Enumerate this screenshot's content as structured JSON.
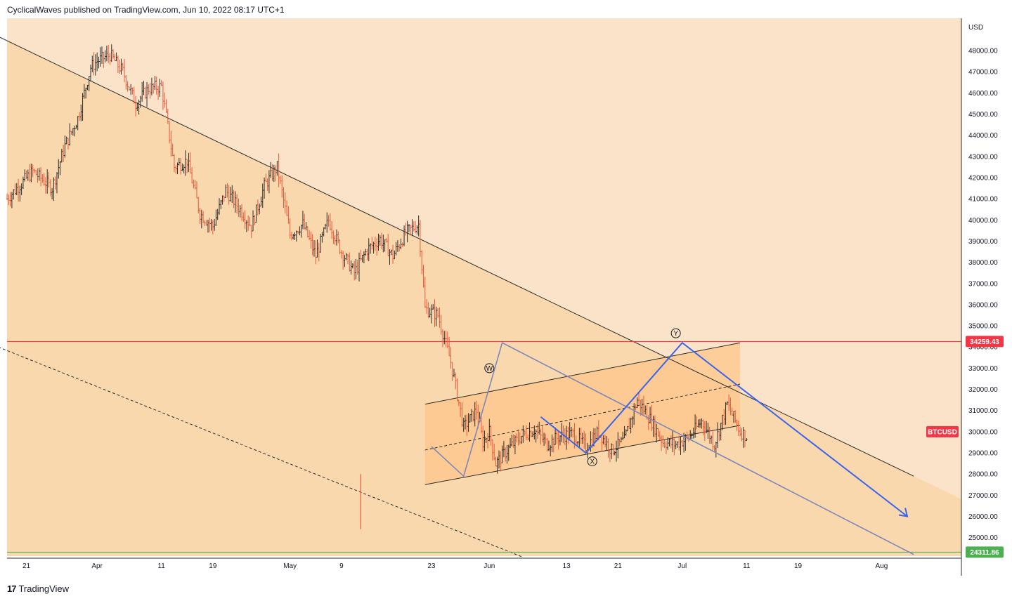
{
  "header": {
    "title": "CyclicalWaves published on TradingView.com, Jun 10, 2022 08:17 UTC+1"
  },
  "footer": {
    "logo_mark": "17",
    "brand": "TradingView"
  },
  "colors": {
    "band_light": "#fbe3c9",
    "band_dark": "#f9d8ae",
    "channel_fill": "#fdc68a",
    "candle_up": "#2b2b2b",
    "candle_down": "#e8583a",
    "resistance": "#f23645",
    "support": "#4caf50",
    "wave": "#3a64ea",
    "wave_grey": "#7b88b8"
  },
  "chart_data": {
    "type": "candlestick",
    "symbol": "BTCUSD",
    "currency": "USD",
    "y_range": [
      24311.86,
      49200
    ],
    "y_ticks": [
      "48000.00",
      "47000.00",
      "46000.00",
      "45000.00",
      "44000.00",
      "43000.00",
      "42000.00",
      "41000.00",
      "40000.00",
      "39000.00",
      "38000.00",
      "37000.00",
      "36000.00",
      "35000.00",
      "34000.00",
      "33000.00",
      "32000.00",
      "31000.00",
      "30000.00",
      "29000.00",
      "28000.00",
      "27000.00",
      "26000.00",
      "25000.00"
    ],
    "x_ticks": [
      {
        "label": "21",
        "date": "2022-03-21"
      },
      {
        "label": "Apr",
        "date": "2022-04-01"
      },
      {
        "label": "11",
        "date": "2022-04-11"
      },
      {
        "label": "19",
        "date": "2022-04-19"
      },
      {
        "label": "May",
        "date": "2022-05-01"
      },
      {
        "label": "9",
        "date": "2022-05-09"
      },
      {
        "label": "23",
        "date": "2022-05-23"
      },
      {
        "label": "Jun",
        "date": "2022-06-01"
      },
      {
        "label": "13",
        "date": "2022-06-13"
      },
      {
        "label": "21",
        "date": "2022-06-21"
      },
      {
        "label": "Jul",
        "date": "2022-07-01"
      },
      {
        "label": "11",
        "date": "2022-07-11"
      },
      {
        "label": "19",
        "date": "2022-07-19"
      },
      {
        "label": "Aug",
        "date": "2022-08-01"
      }
    ],
    "price_tags": [
      {
        "label": "34259.43",
        "value": 34259.43,
        "color": "#f23645"
      },
      {
        "label": "24311.86",
        "value": 24311.86,
        "color": "#4caf50"
      }
    ],
    "symbol_tag": {
      "label": "BTCUSD",
      "color": "#f23645",
      "value": 30000
    },
    "close_path": [
      [
        "2022-03-18",
        41000
      ],
      [
        "2022-03-22",
        42300
      ],
      [
        "2022-03-25",
        41500
      ],
      [
        "2022-03-27",
        43500
      ],
      [
        "2022-03-29",
        44800
      ],
      [
        "2022-03-31",
        47200
      ],
      [
        "2022-04-01",
        47500
      ],
      [
        "2022-04-03",
        47800
      ],
      [
        "2022-04-05",
        47000
      ],
      [
        "2022-04-07",
        45500
      ],
      [
        "2022-04-09",
        46200
      ],
      [
        "2022-04-11",
        46300
      ],
      [
        "2022-04-13",
        42500
      ],
      [
        "2022-04-15",
        42800
      ],
      [
        "2022-04-17",
        40300
      ],
      [
        "2022-04-19",
        39700
      ],
      [
        "2022-04-21",
        41400
      ],
      [
        "2022-04-23",
        40600
      ],
      [
        "2022-04-25",
        39700
      ],
      [
        "2022-04-27",
        41600
      ],
      [
        "2022-04-29",
        42500
      ],
      [
        "2022-05-01",
        39300
      ],
      [
        "2022-05-03",
        39800
      ],
      [
        "2022-05-05",
        38300
      ],
      [
        "2022-05-07",
        40000
      ],
      [
        "2022-05-09",
        38500
      ],
      [
        "2022-05-11",
        37500
      ],
      [
        "2022-05-13",
        38600
      ],
      [
        "2022-05-15",
        39100
      ],
      [
        "2022-05-17",
        38300
      ],
      [
        "2022-05-19",
        39400
      ],
      [
        "2022-05-21",
        39800
      ],
      [
        "2022-05-22",
        35800
      ],
      [
        "2022-05-24",
        35500
      ],
      [
        "2022-05-26",
        33300
      ],
      [
        "2022-05-28",
        30200
      ],
      [
        "2022-05-30",
        31000
      ],
      [
        "2022-05-31",
        29500
      ],
      [
        "2022-06-01",
        30000
      ],
      [
        "2022-06-02",
        28500
      ],
      [
        "2022-06-04",
        29200
      ],
      [
        "2022-06-06",
        29800
      ],
      [
        "2022-06-08",
        30100
      ],
      [
        "2022-06-10",
        29400
      ],
      [
        "2022-06-12",
        29800
      ],
      [
        "2022-06-14",
        29900
      ],
      [
        "2022-06-16",
        29300
      ],
      [
        "2022-06-18",
        30000
      ],
      [
        "2022-06-20",
        29100
      ],
      [
        "2022-06-22",
        29600
      ],
      [
        "2022-06-24",
        31500
      ],
      [
        "2022-06-26",
        30600
      ],
      [
        "2022-06-28",
        29500
      ],
      [
        "2022-06-30",
        29400
      ],
      [
        "2022-07-02",
        29700
      ],
      [
        "2022-07-04",
        30500
      ],
      [
        "2022-07-06",
        29400
      ],
      [
        "2022-07-08",
        31300
      ],
      [
        "2022-07-10",
        30000
      ],
      [
        "2022-07-11",
        29800
      ]
    ],
    "channel_main": [
      {
        "from": [
          "2022-03-15",
          48900
        ],
        "to": [
          "2022-08-06",
          27900
        ]
      }
    ],
    "wave_labels": [
      "W",
      "X",
      "Y"
    ]
  }
}
